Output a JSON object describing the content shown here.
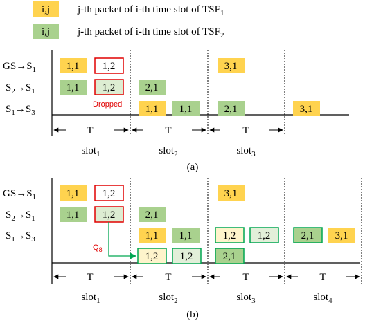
{
  "legend": [
    {
      "text": "i,j",
      "desc": "j-th packet of i-th time slot of TSF",
      "sub": "1",
      "color": "#ffd34f"
    },
    {
      "text": "i,j",
      "desc": "j-th packet of i-th time slot of TSF",
      "sub": "2",
      "color": "#a9d18e"
    }
  ],
  "colors": {
    "tsf1": "#ffd34f",
    "tsf2": "#a9d18e",
    "pale": "#fef4cb",
    "red": "#e00000",
    "green": "#00a651"
  },
  "rows": [
    {
      "from": "GS",
      "arrow": "→",
      "to": "S",
      "to_sub": "1"
    },
    {
      "from": "S",
      "from_sub": "2",
      "arrow": "→",
      "to": "S",
      "to_sub": "1"
    },
    {
      "from": "S",
      "from_sub": "1",
      "arrow": "→",
      "to": "S",
      "to_sub": "3"
    }
  ],
  "period_label": "T",
  "slot_label": "slot",
  "panel_a": {
    "caption": "(a)",
    "dropped_label": "Dropped",
    "slots": [
      "1",
      "2",
      "3"
    ],
    "packets": [
      {
        "row": 0,
        "text": "1,1",
        "style": "tsf1"
      },
      {
        "row": 0,
        "text": "1,2",
        "style": "red-outline"
      },
      {
        "row": 0,
        "text": "3,1",
        "style": "tsf1"
      },
      {
        "row": 1,
        "text": "1,1",
        "style": "tsf2"
      },
      {
        "row": 1,
        "text": "1,2",
        "style": "red-outline-light"
      },
      {
        "row": 1,
        "text": "2,1",
        "style": "tsf2"
      },
      {
        "row": 2,
        "text": "1,1",
        "style": "tsf1"
      },
      {
        "row": 2,
        "text": "1,1",
        "style": "tsf2"
      },
      {
        "row": 2,
        "text": "2,1",
        "style": "tsf2"
      },
      {
        "row": 2,
        "text": "3,1",
        "style": "tsf1"
      }
    ]
  },
  "panel_b": {
    "caption": "(b)",
    "queue_label": "Q",
    "queue_sub": "8",
    "slots": [
      "1",
      "2",
      "3",
      "4"
    ],
    "packets": [
      {
        "row": 0,
        "text": "1,1",
        "style": "tsf1"
      },
      {
        "row": 0,
        "text": "1,2",
        "style": "red-outline"
      },
      {
        "row": 0,
        "text": "3,1",
        "style": "tsf1"
      },
      {
        "row": 1,
        "text": "1,1",
        "style": "tsf2"
      },
      {
        "row": 1,
        "text": "1,2",
        "style": "red-outline-light"
      },
      {
        "row": 1,
        "text": "2,1",
        "style": "tsf2"
      },
      {
        "row": 2,
        "text": "1,1",
        "style": "tsf1"
      },
      {
        "row": 2,
        "text": "1,1",
        "style": "tsf2"
      },
      {
        "row": 2,
        "text": "1,2",
        "style": "green-outline-pale"
      },
      {
        "row": 2,
        "text": "1,2",
        "style": "green-outline-light"
      },
      {
        "row": 2,
        "text": "2,1",
        "style": "green-outline-tsf2"
      },
      {
        "row": 2,
        "text": "3,1",
        "style": "tsf1"
      },
      {
        "row": "queue",
        "text": "1,2",
        "style": "green-outline-pale"
      },
      {
        "row": "queue",
        "text": "1,2",
        "style": "green-outline-light"
      },
      {
        "row": "queue",
        "text": "2,1",
        "style": "green-outline-tsf2"
      }
    ]
  }
}
